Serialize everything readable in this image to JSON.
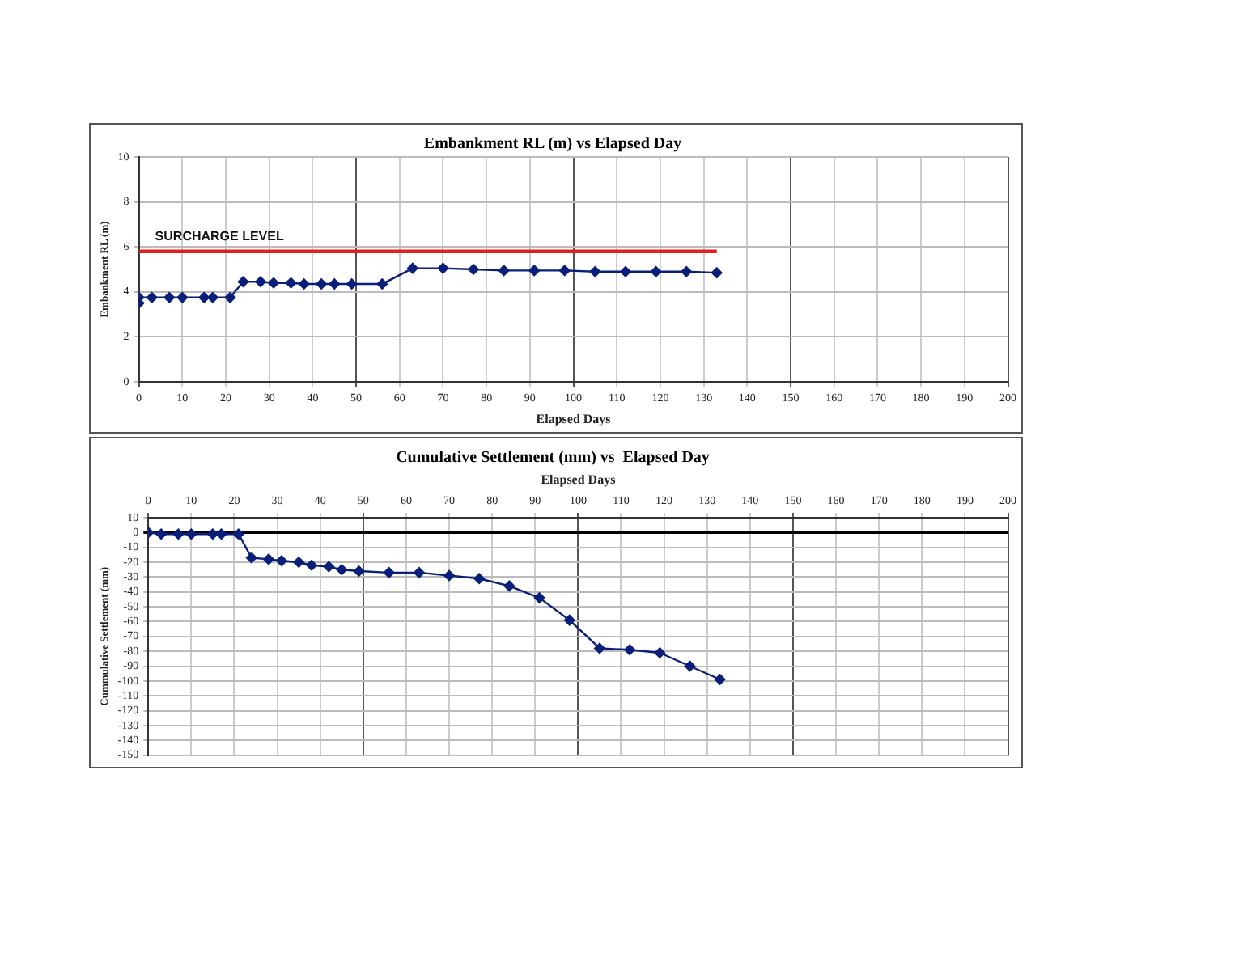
{
  "chart_data": [
    {
      "type": "line",
      "title": "Embankment RL (m) vs Elapsed Day",
      "xlabel": "Elapsed Days",
      "ylabel": "Embankment RL (m)",
      "xlim": [
        0,
        200
      ],
      "xticks": [
        0,
        10,
        20,
        30,
        40,
        50,
        60,
        70,
        80,
        90,
        100,
        110,
        120,
        130,
        140,
        150,
        160,
        170,
        180,
        190,
        200
      ],
      "ylim": [
        0,
        10
      ],
      "yticks": [
        0,
        2,
        4,
        6,
        8,
        10
      ],
      "grid": true,
      "legend": false,
      "marker": "diamond",
      "line_style": "solid",
      "series": [
        {
          "name": "SURCHARGE LEVEL",
          "color": "#e02020",
          "marker": "none",
          "x": [
            0,
            133
          ],
          "values": [
            5.8,
            5.8
          ]
        },
        {
          "color": "#0a1f7a",
          "x": [
            0,
            0,
            3,
            7,
            10,
            15,
            17,
            21,
            24,
            28,
            31,
            35,
            38,
            42,
            45,
            49,
            56,
            63,
            70,
            77,
            84,
            91,
            98,
            105,
            112,
            119,
            126,
            133
          ],
          "values": [
            3.5,
            3.75,
            3.75,
            3.75,
            3.75,
            3.75,
            3.75,
            3.75,
            4.45,
            4.45,
            4.4,
            4.4,
            4.35,
            4.35,
            4.35,
            4.35,
            4.35,
            5.05,
            5.05,
            5.0,
            4.95,
            4.95,
            4.95,
            4.9,
            4.9,
            4.9,
            4.9,
            4.85
          ]
        }
      ]
    },
    {
      "type": "line",
      "title": "Cumulative Settlement (mm) vs  Elapsed Day",
      "xlabel": "Elapsed Days",
      "ylabel": "Cummulative Settlement (mm)",
      "xlim": [
        0,
        200
      ],
      "xticks": [
        0,
        10,
        20,
        30,
        40,
        50,
        60,
        70,
        80,
        90,
        100,
        110,
        120,
        130,
        140,
        150,
        160,
        170,
        180,
        190,
        200
      ],
      "ylim": [
        -150,
        10
      ],
      "yticks": [
        -150,
        -140,
        -130,
        -120,
        -110,
        -100,
        -90,
        -80,
        -70,
        -60,
        -50,
        -40,
        -30,
        -20,
        -10,
        0,
        10
      ],
      "grid": true,
      "legend": false,
      "marker": "diamond",
      "line_style": "solid",
      "series": [
        {
          "color": "#0a1f7a",
          "x": [
            0,
            3,
            7,
            10,
            15,
            17,
            21,
            24,
            28,
            31,
            35,
            38,
            42,
            45,
            49,
            56,
            63,
            70,
            77,
            84,
            91,
            98,
            105,
            112,
            119,
            126,
            133
          ],
          "values": [
            0,
            -1,
            -1,
            -1,
            -1,
            -1,
            -1,
            -17,
            -18,
            -19,
            -20,
            -22,
            -23,
            -25,
            -26,
            -27,
            -27,
            -29,
            -31,
            -36,
            -44,
            -59,
            -78,
            -79,
            -81,
            -90,
            -99
          ]
        }
      ]
    }
  ]
}
